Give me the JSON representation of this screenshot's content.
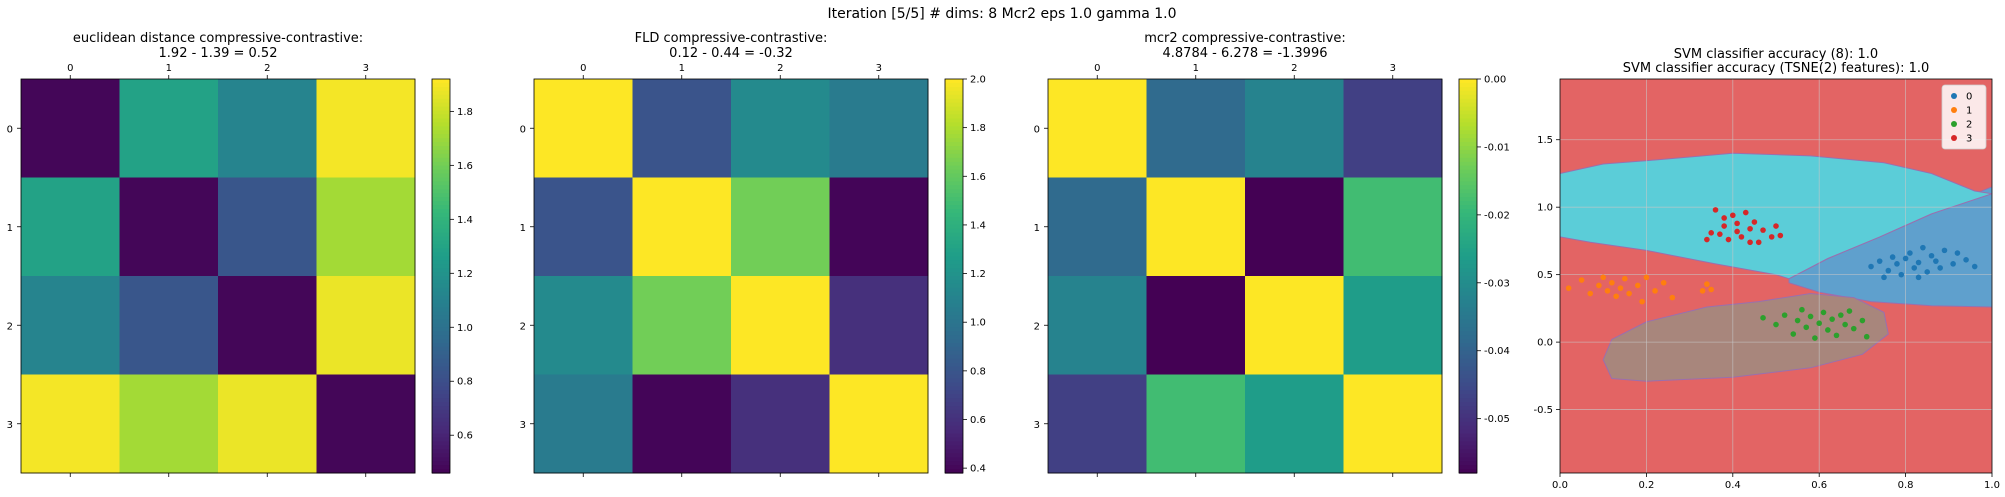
{
  "suptitle": "Iteration [5/5] # dims: 8 Mcr2 eps 1.0 gamma 1.0",
  "chart_data": [
    {
      "type": "heatmap",
      "title_lines": [
        "euclidean distance compressive-contrastive:",
        "1.92 - 1.39 = 0.52"
      ],
      "row_labels": [
        "0",
        "1",
        "2",
        "3"
      ],
      "col_labels": [
        "0",
        "1",
        "2",
        "3"
      ],
      "matrix": [
        [
          0.48,
          1.3,
          1.12,
          1.9
        ],
        [
          1.3,
          0.48,
          0.85,
          1.72
        ],
        [
          1.12,
          0.85,
          0.48,
          1.88
        ],
        [
          1.9,
          1.72,
          1.88,
          0.48
        ]
      ],
      "vmin": 0.46,
      "vmax": 1.92,
      "colorbar_ticks": [
        "0.6",
        "0.8",
        "1.0",
        "1.2",
        "1.4",
        "1.6",
        "1.8"
      ],
      "colorbar_values": [
        0.6,
        0.8,
        1.0,
        1.2,
        1.4,
        1.6,
        1.8
      ],
      "colormap": "viridis"
    },
    {
      "type": "heatmap",
      "title_lines": [
        "FLD compressive-contrastive:",
        "0.12 - 0.44 = -0.32"
      ],
      "row_labels": [
        "0",
        "1",
        "2",
        "3"
      ],
      "col_labels": [
        "0",
        "1",
        "2",
        "3"
      ],
      "matrix": [
        [
          2.0,
          0.8,
          1.15,
          1.05
        ],
        [
          0.8,
          2.0,
          1.65,
          0.4
        ],
        [
          1.15,
          1.65,
          2.0,
          0.6
        ],
        [
          1.05,
          0.4,
          0.6,
          2.0
        ]
      ],
      "vmin": 0.38,
      "vmax": 2.0,
      "colorbar_ticks": [
        "0.4",
        "0.6",
        "0.8",
        "1.0",
        "1.2",
        "1.4",
        "1.6",
        "1.8",
        "2.0"
      ],
      "colorbar_values": [
        0.4,
        0.6,
        0.8,
        1.0,
        1.2,
        1.4,
        1.6,
        1.8,
        2.0
      ],
      "colormap": "viridis"
    },
    {
      "type": "heatmap",
      "title_lines": [
        "mcr2 compressive-contrastive:",
        "4.8784 - 6.278 = -1.3996"
      ],
      "row_labels": [
        "0",
        "1",
        "2",
        "3"
      ],
      "col_labels": [
        "0",
        "1",
        "2",
        "3"
      ],
      "matrix": [
        [
          0.0,
          -0.038,
          -0.032,
          -0.047
        ],
        [
          -0.038,
          0.0,
          -0.058,
          -0.018
        ],
        [
          -0.032,
          -0.058,
          0.0,
          -0.026
        ],
        [
          -0.047,
          -0.018,
          -0.026,
          0.0
        ]
      ],
      "vmin": -0.058,
      "vmax": 0.0,
      "colorbar_ticks": [
        "0.00",
        "-0.01",
        "-0.02",
        "-0.03",
        "-0.04",
        "-0.05"
      ],
      "colorbar_values": [
        0.0,
        -0.01,
        -0.02,
        -0.03,
        -0.04,
        -0.05
      ],
      "colormap": "viridis"
    },
    {
      "type": "scatter",
      "title_lines": [
        "SVM classifier accuracy (8): 1.0",
        "SVM classifier accuracy (TSNE(2) features): 1.0"
      ],
      "xlim": [
        0.0,
        1.0
      ],
      "ylim": [
        -0.97,
        1.95
      ],
      "x_ticks": [
        "0.0",
        "0.2",
        "0.4",
        "0.6",
        "0.8",
        "1.0"
      ],
      "x_tick_values": [
        0.0,
        0.2,
        0.4,
        0.6,
        0.8,
        1.0
      ],
      "y_ticks": [
        "1.5",
        "1.0",
        "0.5",
        "0.0",
        "-0.5"
      ],
      "y_tick_values": [
        1.5,
        1.0,
        0.5,
        0.0,
        -0.5
      ],
      "grid": true,
      "legend_position": "top-right",
      "background_color": "#e36464",
      "regions": [
        {
          "label": "0",
          "color": "#5fa0cd",
          "polygon": [
            [
              0.53,
              0.47
            ],
            [
              0.62,
              0.62
            ],
            [
              0.74,
              0.78
            ],
            [
              0.86,
              0.95
            ],
            [
              0.96,
              1.1
            ],
            [
              1.0,
              1.15
            ],
            [
              1.0,
              0.26
            ],
            [
              0.86,
              0.27
            ],
            [
              0.72,
              0.3
            ],
            [
              0.6,
              0.37
            ],
            [
              0.53,
              0.44
            ]
          ]
        },
        {
          "label": "2",
          "color": "#a8867c",
          "polygon": [
            [
              0.12,
              0.02
            ],
            [
              0.2,
              0.15
            ],
            [
              0.34,
              0.26
            ],
            [
              0.46,
              0.3
            ],
            [
              0.58,
              0.36
            ],
            [
              0.68,
              0.33
            ],
            [
              0.75,
              0.22
            ],
            [
              0.76,
              0.06
            ],
            [
              0.7,
              -0.09
            ],
            [
              0.58,
              -0.19
            ],
            [
              0.4,
              -0.26
            ],
            [
              0.2,
              -0.29
            ],
            [
              0.12,
              -0.27
            ],
            [
              0.1,
              -0.13
            ]
          ]
        },
        {
          "label": "3",
          "color": "#5bcdd8",
          "polygon": [
            [
              0.0,
              1.25
            ],
            [
              0.1,
              1.32
            ],
            [
              0.22,
              1.35
            ],
            [
              0.4,
              1.4
            ],
            [
              0.58,
              1.38
            ],
            [
              0.75,
              1.33
            ],
            [
              0.86,
              1.25
            ],
            [
              0.96,
              1.12
            ],
            [
              1.0,
              1.1
            ],
            [
              0.86,
              0.95
            ],
            [
              0.74,
              0.78
            ],
            [
              0.62,
              0.62
            ],
            [
              0.53,
              0.47
            ],
            [
              0.5,
              0.5
            ],
            [
              0.36,
              0.58
            ],
            [
              0.2,
              0.68
            ],
            [
              0.07,
              0.74
            ],
            [
              0.0,
              0.78
            ]
          ]
        }
      ],
      "series": [
        {
          "name": "0",
          "color": "#1f77b4",
          "points": [
            [
              0.72,
              0.56
            ],
            [
              0.74,
              0.6
            ],
            [
              0.76,
              0.53
            ],
            [
              0.77,
              0.63
            ],
            [
              0.78,
              0.58
            ],
            [
              0.79,
              0.5
            ],
            [
              0.8,
              0.62
            ],
            [
              0.81,
              0.66
            ],
            [
              0.82,
              0.55
            ],
            [
              0.83,
              0.59
            ],
            [
              0.84,
              0.7
            ],
            [
              0.85,
              0.52
            ],
            [
              0.86,
              0.64
            ],
            [
              0.87,
              0.6
            ],
            [
              0.88,
              0.55
            ],
            [
              0.89,
              0.68
            ],
            [
              0.91,
              0.58
            ],
            [
              0.92,
              0.66
            ],
            [
              0.94,
              0.61
            ],
            [
              0.96,
              0.56
            ],
            [
              0.75,
              0.48
            ],
            [
              0.83,
              0.48
            ]
          ]
        },
        {
          "name": "1",
          "color": "#ff7f0e",
          "points": [
            [
              0.02,
              0.4
            ],
            [
              0.05,
              0.46
            ],
            [
              0.07,
              0.36
            ],
            [
              0.09,
              0.42
            ],
            [
              0.1,
              0.48
            ],
            [
              0.11,
              0.38
            ],
            [
              0.12,
              0.44
            ],
            [
              0.13,
              0.34
            ],
            [
              0.14,
              0.4
            ],
            [
              0.15,
              0.47
            ],
            [
              0.16,
              0.36
            ],
            [
              0.18,
              0.42
            ],
            [
              0.19,
              0.3
            ],
            [
              0.2,
              0.48
            ],
            [
              0.24,
              0.44
            ],
            [
              0.26,
              0.33
            ],
            [
              0.33,
              0.38
            ],
            [
              0.34,
              0.43
            ],
            [
              0.35,
              0.39
            ],
            [
              0.22,
              0.38
            ]
          ]
        },
        {
          "name": "2",
          "color": "#2ca02c",
          "points": [
            [
              0.47,
              0.18
            ],
            [
              0.5,
              0.13
            ],
            [
              0.52,
              0.2
            ],
            [
              0.54,
              0.06
            ],
            [
              0.55,
              0.16
            ],
            [
              0.56,
              0.24
            ],
            [
              0.57,
              0.11
            ],
            [
              0.58,
              0.19
            ],
            [
              0.59,
              0.03
            ],
            [
              0.6,
              0.14
            ],
            [
              0.61,
              0.22
            ],
            [
              0.62,
              0.09
            ],
            [
              0.63,
              0.17
            ],
            [
              0.64,
              0.05
            ],
            [
              0.65,
              0.2
            ],
            [
              0.66,
              0.13
            ],
            [
              0.67,
              0.23
            ],
            [
              0.68,
              0.1
            ],
            [
              0.7,
              0.16
            ],
            [
              0.71,
              0.04
            ]
          ]
        },
        {
          "name": "3",
          "color": "#d62728",
          "points": [
            [
              0.34,
              0.76
            ],
            [
              0.35,
              0.81
            ],
            [
              0.36,
              0.98
            ],
            [
              0.37,
              0.8
            ],
            [
              0.38,
              0.86
            ],
            [
              0.39,
              0.76
            ],
            [
              0.4,
              0.94
            ],
            [
              0.41,
              0.82
            ],
            [
              0.42,
              0.78
            ],
            [
              0.43,
              0.96
            ],
            [
              0.44,
              0.84
            ],
            [
              0.45,
              0.89
            ],
            [
              0.46,
              0.74
            ],
            [
              0.47,
              0.83
            ],
            [
              0.49,
              0.78
            ],
            [
              0.5,
              0.86
            ],
            [
              0.51,
              0.79
            ],
            [
              0.44,
              0.74
            ],
            [
              0.38,
              0.92
            ],
            [
              0.41,
              0.88
            ]
          ]
        }
      ]
    }
  ]
}
